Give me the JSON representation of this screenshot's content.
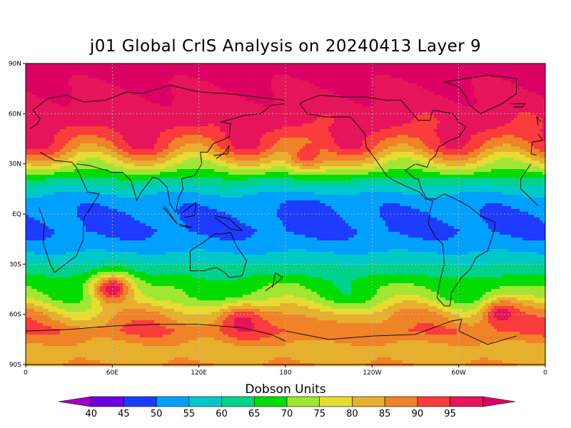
{
  "title": "j01 Global CrIS Analysis on 20240413 Layer 9",
  "map": {
    "lat_labels": [
      "90N",
      "60N",
      "30N",
      "EQ",
      "30S",
      "60S",
      "90S"
    ],
    "lon_labels": [
      "0",
      "60E",
      "120E",
      "180",
      "120W",
      "60W",
      "0"
    ]
  },
  "colorbar": {
    "title": "Dobson Units",
    "labels": [
      "40",
      "45",
      "50",
      "55",
      "60",
      "65",
      "70",
      "75",
      "80",
      "85",
      "90",
      "95"
    ],
    "colors": [
      "#a000c8",
      "#6e00dc",
      "#1e3cff",
      "#00a0ff",
      "#00c8c8",
      "#00d28c",
      "#00dc00",
      "#a0e632",
      "#e6dc32",
      "#e6af2d",
      "#f08228",
      "#fa3c3c",
      "#e6145a",
      "#dc0064"
    ]
  },
  "chart_data": {
    "type": "heatmap",
    "title": "j01 Global CrIS Analysis on 20240413 Layer 9",
    "units": "Dobson Units",
    "x": "longitude",
    "y": "latitude",
    "xlim": [
      0,
      360
    ],
    "ylim": [
      -90,
      90
    ],
    "grid": true,
    "zonal_profile": {
      "lat": [
        90,
        75,
        60,
        50,
        40,
        30,
        20,
        10,
        0,
        -10,
        -20,
        -30,
        -40,
        -50,
        -60,
        -70,
        -80,
        -90
      ],
      "value": [
        97,
        95,
        92,
        90,
        85,
        72,
        58,
        48,
        45,
        44,
        48,
        55,
        62,
        66,
        78,
        85,
        78,
        80
      ]
    },
    "features": [
      {
        "lon": 60,
        "lat": -45,
        "value": 93
      },
      {
        "lon": 195,
        "lat": 35,
        "value": 88
      },
      {
        "lon": 200,
        "lat": 0,
        "value": 42
      },
      {
        "lon": 150,
        "lat": -65,
        "value": 92
      },
      {
        "lon": 330,
        "lat": -60,
        "value": 92
      }
    ]
  }
}
